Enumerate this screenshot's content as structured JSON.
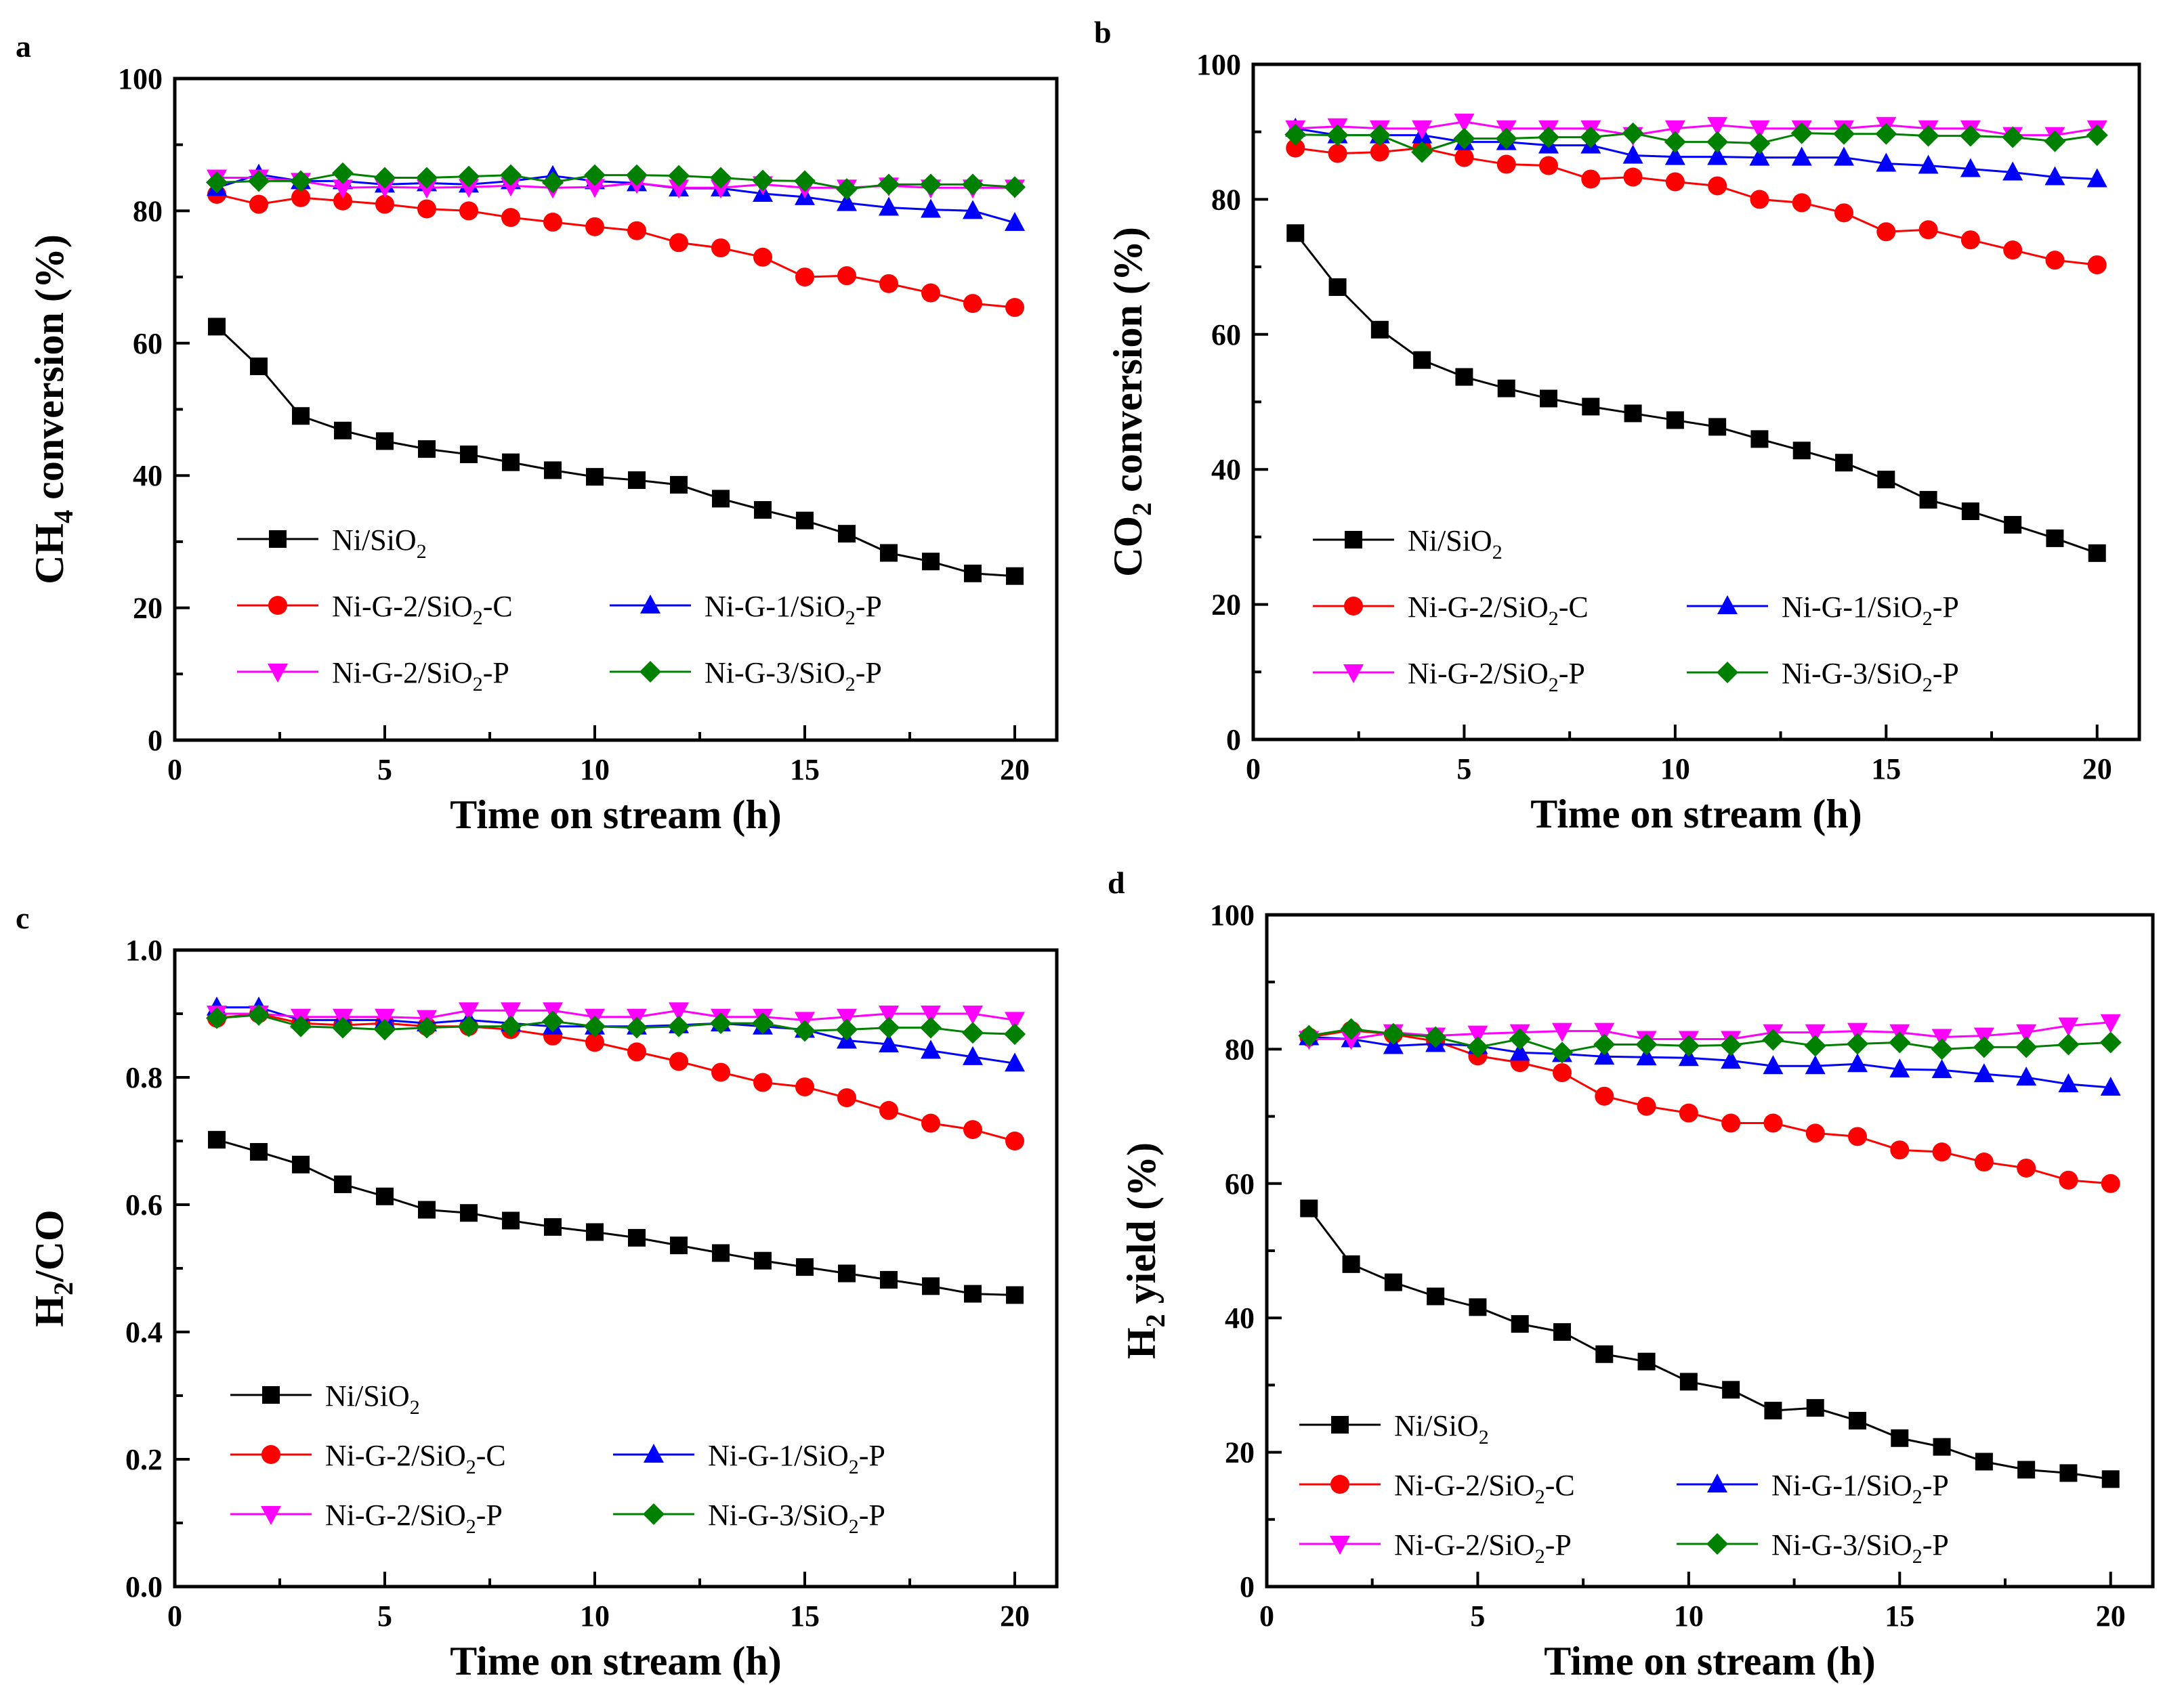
{
  "figure": {
    "colors": {
      "Ni/SiO2": "#000000",
      "Ni-G-2/SiO2-C": "#ff0000",
      "Ni-G-1/SiO2-P": "#0000ff",
      "Ni-G-2/SiO2-P": "#ff00ff",
      "Ni-G-3/SiO2-P": "#008000"
    },
    "legend_labels": [
      {
        "key": "Ni/SiO2",
        "pre": "Ni/SiO",
        "sub": "2",
        "post": "",
        "marker": "square"
      },
      {
        "key": "Ni-G-2/SiO2-C",
        "pre": "Ni-G-2/SiO",
        "sub": "2",
        "post": "-C",
        "marker": "circle"
      },
      {
        "key": "Ni-G-1/SiO2-P",
        "pre": "Ni-G-1/SiO",
        "sub": "2",
        "post": "-P",
        "marker": "triangle-up"
      },
      {
        "key": "Ni-G-2/SiO2-P",
        "pre": "Ni-G-2/SiO",
        "sub": "2",
        "post": "-P",
        "marker": "triangle-down"
      },
      {
        "key": "Ni-G-3/SiO2-P",
        "pre": "Ni-G-3/SiO",
        "sub": "2",
        "post": "-P",
        "marker": "diamond"
      }
    ]
  },
  "chart_data": [
    {
      "panel": "a",
      "type": "line",
      "xlabel": "Time on stream (h)",
      "ylabel": {
        "pre": "CH",
        "sub": "4",
        "post": " conversion (%)"
      },
      "xlim": [
        0,
        21
      ],
      "ylim": [
        0,
        100
      ],
      "xticks": [
        0,
        5,
        10,
        15,
        20
      ],
      "yticks": [
        0,
        20,
        40,
        60,
        80,
        100
      ],
      "ytick_labels": [
        "0",
        "20",
        "40",
        "60",
        "80",
        "100"
      ],
      "x": [
        1,
        2,
        3,
        4,
        5,
        6,
        7,
        8,
        9,
        10,
        11,
        12,
        13,
        14,
        15,
        16,
        17,
        18,
        19,
        20
      ],
      "series": [
        {
          "name": "Ni/SiO2",
          "values": [
            62.5,
            56.5,
            49,
            46.8,
            45.2,
            44,
            43.2,
            42,
            40.8,
            39.8,
            39.3,
            38.6,
            36.5,
            34.8,
            33.2,
            31.2,
            28.3,
            27,
            25.2,
            24.8
          ]
        },
        {
          "name": "Ni-G-2/SiO2-C",
          "values": [
            82.5,
            81,
            82,
            81.5,
            81,
            80.3,
            80,
            79,
            78.3,
            77.6,
            77,
            75.2,
            74.4,
            73,
            70,
            70.2,
            69,
            67.6,
            66,
            65.4
          ]
        },
        {
          "name": "Ni-G-1/SiO2-P",
          "values": [
            83.5,
            85.5,
            84.5,
            84.5,
            84,
            84.2,
            84,
            84.5,
            85.3,
            84.5,
            84.2,
            83.4,
            83.4,
            82.6,
            82.1,
            81.2,
            80.5,
            80.2,
            80,
            78.2
          ]
        },
        {
          "name": "Ni-G-2/SiO2-P",
          "values": [
            85,
            85,
            84.5,
            83.5,
            83.6,
            83.5,
            83.6,
            83.8,
            83.5,
            83.6,
            84.2,
            83.5,
            83.5,
            84,
            83.5,
            83.5,
            83.8,
            83.5,
            83.5,
            83.5
          ]
        },
        {
          "name": "Ni-G-3/SiO2-P",
          "values": [
            84.3,
            84.5,
            84.5,
            85.7,
            85,
            85,
            85.2,
            85.4,
            84.3,
            85.4,
            85.4,
            85.3,
            85,
            84.6,
            84.5,
            83.3,
            84,
            84,
            84,
            83.6
          ]
        }
      ]
    },
    {
      "panel": "b",
      "type": "line",
      "xlabel": "Time on stream (h)",
      "ylabel": {
        "pre": "CO",
        "sub": "2",
        "post": " conversion (%)"
      },
      "xlim": [
        0,
        21
      ],
      "ylim": [
        0,
        100
      ],
      "xticks": [
        0,
        5,
        10,
        15,
        20
      ],
      "yticks": [
        0,
        20,
        40,
        60,
        80,
        100
      ],
      "ytick_labels": [
        "0",
        "20",
        "40",
        "60",
        "80",
        "100"
      ],
      "x": [
        1,
        2,
        3,
        4,
        5,
        6,
        7,
        8,
        9,
        10,
        11,
        12,
        13,
        14,
        15,
        16,
        17,
        18,
        19,
        20
      ],
      "series": [
        {
          "name": "Ni/SiO2",
          "values": [
            75,
            67,
            60.7,
            56.2,
            53.7,
            52,
            50.5,
            49.3,
            48.3,
            47.3,
            46.3,
            44.5,
            42.8,
            41,
            38.5,
            35.5,
            33.8,
            31.8,
            29.8,
            27.6
          ]
        },
        {
          "name": "Ni-G-2/SiO2-C",
          "values": [
            87.6,
            86.8,
            87,
            87.6,
            86.2,
            85.2,
            85,
            83,
            83.3,
            82.6,
            82,
            80,
            79.5,
            78,
            75.2,
            75.5,
            74,
            72.5,
            71,
            70.3
          ]
        },
        {
          "name": "Ni-G-1/SiO2-P",
          "values": [
            90.5,
            89.5,
            89.5,
            89.5,
            88.5,
            88.5,
            88,
            88,
            86.5,
            86.3,
            86.3,
            86.2,
            86.2,
            86.2,
            85.3,
            85,
            84.5,
            84,
            83.3,
            83
          ]
        },
        {
          "name": "Ni-G-2/SiO2-P",
          "values": [
            90.5,
            90.8,
            90.5,
            90.5,
            91.5,
            90.5,
            90.5,
            90.5,
            89.5,
            90.5,
            91,
            90.5,
            90.5,
            90.5,
            91,
            90.5,
            90.5,
            89.5,
            89.5,
            90.5
          ]
        },
        {
          "name": "Ni-G-3/SiO2-P",
          "values": [
            89.6,
            89.5,
            89.5,
            87,
            89,
            89,
            89.2,
            89.2,
            89.8,
            88.5,
            88.5,
            88.3,
            89.8,
            89.7,
            89.7,
            89.4,
            89.4,
            89.2,
            88.6,
            89.5
          ]
        }
      ]
    },
    {
      "panel": "c",
      "type": "line",
      "xlabel": "Time on stream (h)",
      "ylabel": {
        "pre": "H",
        "sub": "2",
        "post": "/CO"
      },
      "xlim": [
        0,
        21
      ],
      "ylim": [
        0,
        1.0
      ],
      "xticks": [
        0,
        5,
        10,
        15,
        20
      ],
      "yticks": [
        0,
        0.2,
        0.4,
        0.6,
        0.8,
        1.0
      ],
      "ytick_labels": [
        "0.0",
        "0.2",
        "0.4",
        "0.6",
        "0.8",
        "1.0"
      ],
      "x": [
        1,
        2,
        3,
        4,
        5,
        6,
        7,
        8,
        9,
        10,
        11,
        12,
        13,
        14,
        15,
        16,
        17,
        18,
        19,
        20
      ],
      "series": [
        {
          "name": "Ni/SiO2",
          "values": [
            0.702,
            0.683,
            0.663,
            0.632,
            0.613,
            0.592,
            0.587,
            0.575,
            0.565,
            0.557,
            0.548,
            0.536,
            0.524,
            0.512,
            0.502,
            0.492,
            0.482,
            0.472,
            0.46,
            0.458
          ]
        },
        {
          "name": "Ni-G-2/SiO2-C",
          "values": [
            0.893,
            0.9,
            0.885,
            0.882,
            0.885,
            0.88,
            0.88,
            0.875,
            0.865,
            0.855,
            0.84,
            0.825,
            0.808,
            0.792,
            0.785,
            0.768,
            0.748,
            0.728,
            0.718,
            0.7
          ]
        },
        {
          "name": "Ni-G-1/SiO2-P",
          "values": [
            0.91,
            0.91,
            0.89,
            0.89,
            0.89,
            0.885,
            0.89,
            0.885,
            0.88,
            0.88,
            0.88,
            0.882,
            0.885,
            0.88,
            0.875,
            0.858,
            0.852,
            0.842,
            0.832,
            0.822
          ]
        },
        {
          "name": "Ni-G-2/SiO2-P",
          "values": [
            0.9,
            0.9,
            0.895,
            0.895,
            0.895,
            0.893,
            0.905,
            0.905,
            0.905,
            0.895,
            0.895,
            0.905,
            0.895,
            0.895,
            0.89,
            0.895,
            0.9,
            0.9,
            0.9,
            0.89
          ]
        },
        {
          "name": "Ni-G-3/SiO2-P",
          "values": [
            0.893,
            0.898,
            0.88,
            0.878,
            0.875,
            0.878,
            0.88,
            0.88,
            0.888,
            0.88,
            0.878,
            0.88,
            0.885,
            0.885,
            0.873,
            0.875,
            0.878,
            0.878,
            0.87,
            0.868
          ]
        }
      ]
    },
    {
      "panel": "d",
      "type": "line",
      "xlabel": "Time on stream (h)",
      "ylabel": {
        "pre": "H",
        "sub": "2",
        "post": " yield (%)"
      },
      "xlim": [
        0,
        21
      ],
      "ylim": [
        0,
        100
      ],
      "xticks": [
        0,
        5,
        10,
        15,
        20
      ],
      "yticks": [
        0,
        20,
        40,
        60,
        80,
        100
      ],
      "ytick_labels": [
        "0",
        "20",
        "40",
        "60",
        "80",
        "100"
      ],
      "x": [
        1,
        2,
        3,
        4,
        5,
        6,
        7,
        8,
        9,
        10,
        11,
        12,
        13,
        14,
        15,
        16,
        17,
        18,
        19,
        20
      ],
      "series": [
        {
          "name": "Ni/SiO2",
          "values": [
            56.3,
            48,
            45.3,
            43.2,
            41.6,
            39.1,
            37.9,
            34.6,
            33.5,
            30.5,
            29.3,
            26.2,
            26.6,
            24.7,
            22.1,
            20.8,
            18.6,
            17.4,
            16.9,
            16
          ]
        },
        {
          "name": "Ni-G-2/SiO2-C",
          "values": [
            81.8,
            82.8,
            82.2,
            81.2,
            79,
            78,
            76.5,
            73,
            71.5,
            70.5,
            69,
            69,
            67.5,
            67,
            65,
            64.7,
            63.2,
            62.3,
            60.5,
            60
          ]
        },
        {
          "name": "Ni-G-1/SiO2-P",
          "values": [
            81.8,
            81.5,
            80.5,
            80.8,
            80.5,
            79.5,
            79.3,
            78.9,
            78.8,
            78.7,
            78.3,
            77.5,
            77.5,
            77.8,
            77,
            76.9,
            76.3,
            75.8,
            74.8,
            74.3
          ]
        },
        {
          "name": "Ni-G-2/SiO2-P",
          "values": [
            81.5,
            81.5,
            82.5,
            82,
            82.3,
            82.5,
            82.7,
            82.7,
            81.5,
            81.5,
            81.5,
            82.5,
            82.5,
            82.7,
            82.5,
            81.8,
            82,
            82.5,
            83.5,
            84
          ]
        },
        {
          "name": "Ni-G-3/SiO2-P",
          "values": [
            82,
            83,
            82.3,
            81.8,
            80.3,
            81.5,
            79.5,
            80.7,
            80.7,
            80.5,
            80.6,
            81.4,
            80.5,
            80.8,
            81,
            80,
            80.3,
            80.3,
            80.7,
            81
          ]
        }
      ]
    }
  ]
}
